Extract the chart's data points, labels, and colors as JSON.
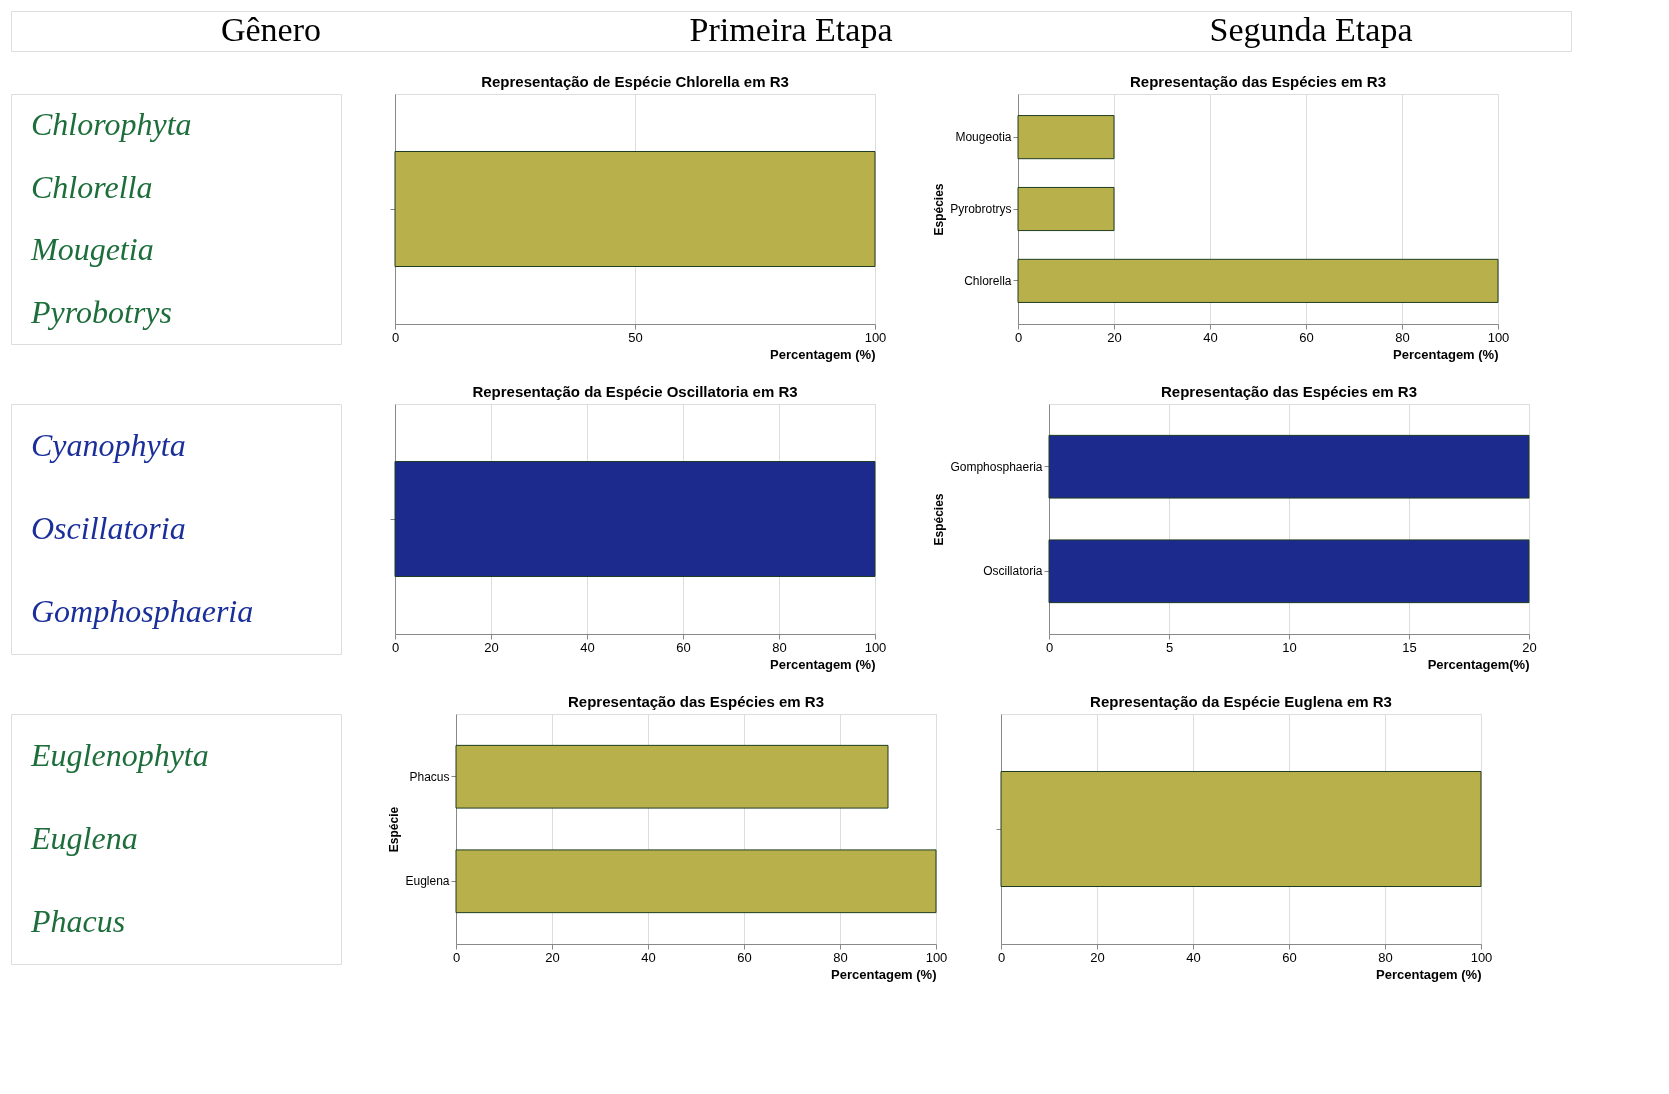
{
  "chart_data": [
    {
      "type": "other",
      "annotations": [
        "Gênero",
        "Primeira Etapa",
        "Segunda Etapa"
      ],
      "color": "#000000"
    },
    {
      "type": "other",
      "annotations": [
        "Chlorophyta",
        "Chlorella",
        "Mougetia",
        "Pyrobotrys"
      ],
      "color": "#1e6e3c"
    },
    {
      "type": "bar",
      "orientation": "horizontal",
      "title": "Representação de Espécie Chlorella em R3",
      "xlabel": "Percentagem (%)",
      "categories": [
        null
      ],
      "values": [
        100
      ],
      "color": "#b8b04a",
      "xlim": [
        0,
        100
      ],
      "xticks": [
        0,
        50,
        100
      ],
      "grid": "x"
    },
    {
      "type": "bar",
      "orientation": "horizontal",
      "title": "Representação das Espécies em R3",
      "xlabel": "Percentagem (%)",
      "ylabel": "Espécies",
      "categories": [
        "Mougeotia",
        "Pyrobrotrys",
        "Chlorella"
      ],
      "values": [
        20,
        20,
        100
      ],
      "color": "#b8b04a",
      "xlim": [
        0,
        100
      ],
      "xticks": [
        0,
        20,
        40,
        60,
        80,
        100
      ],
      "grid": "x"
    },
    {
      "type": "other",
      "annotations": [
        "Cyanophyta",
        "Oscillatoria",
        "Gomphosphaeria"
      ],
      "color": "#1a2f9a"
    },
    {
      "type": "bar",
      "orientation": "horizontal",
      "title": "Representação da Espécie Oscillatoria em R3",
      "xlabel": "Percentagem (%)",
      "categories": [
        null
      ],
      "values": [
        100
      ],
      "color": "#1c2a8e",
      "xlim": [
        0,
        100
      ],
      "xticks": [
        0,
        20,
        40,
        60,
        80,
        100
      ],
      "grid": "x"
    },
    {
      "type": "bar",
      "orientation": "horizontal",
      "title": "Representação das Espécies em R3",
      "xlabel": "Percentagem(%)",
      "ylabel": "Espécies",
      "categories": [
        "Gomphosphaeria",
        "Oscillatoria"
      ],
      "values": [
        20,
        20
      ],
      "color": "#1c2a8e",
      "xlim": [
        0,
        20
      ],
      "xticks": [
        0,
        5,
        10,
        15,
        20
      ],
      "grid": "x"
    },
    {
      "type": "other",
      "annotations": [
        "Euglenophyta",
        "Euglena",
        "Phacus"
      ],
      "color": "#1e6e3c"
    },
    {
      "type": "bar",
      "orientation": "horizontal",
      "title": "Representação das Espécies em R3",
      "xlabel": "Percentagem (%)",
      "ylabel": "Espécie",
      "categories": [
        "Phacus",
        "Euglena"
      ],
      "values": [
        90,
        100
      ],
      "color": "#b8b04a",
      "xlim": [
        0,
        100
      ],
      "xticks": [
        0,
        20,
        40,
        60,
        80,
        100
      ],
      "grid": "x"
    },
    {
      "type": "bar",
      "orientation": "horizontal",
      "title": "Representação da Espécie Euglena em R3",
      "xlabel": "Percentagem (%)",
      "categories": [
        null
      ],
      "values": [
        100
      ],
      "color": "#b8b04a",
      "xlim": [
        0,
        100
      ],
      "xticks": [
        0,
        20,
        40,
        60,
        80,
        100
      ],
      "grid": "x"
    }
  ]
}
